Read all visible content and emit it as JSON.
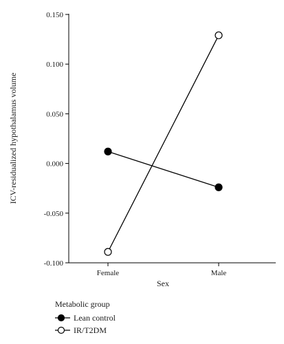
{
  "chart_data": {
    "type": "line",
    "xlabel": "Sex",
    "ylabel": "ICV-residualized hypothalamus volume",
    "categories": [
      "Female",
      "Male"
    ],
    "ylim": [
      -0.1,
      0.15
    ],
    "yticks": [
      -0.1,
      -0.05,
      0.0,
      0.05,
      0.1,
      0.15
    ],
    "ytick_labels": [
      "-0.100",
      "-0.050",
      "0.000",
      "0.050",
      "0.100",
      "0.150"
    ],
    "grid": false,
    "legend": {
      "title": "Metabolic group",
      "placement": "bottom-left"
    },
    "series": [
      {
        "name": "Lean control",
        "values": [
          0.012,
          -0.024
        ],
        "marker": "filled-circle",
        "color": "#000000"
      },
      {
        "name": "IR/T2DM",
        "values": [
          -0.089,
          0.129
        ],
        "marker": "open-circle",
        "color": "#000000"
      }
    ]
  }
}
